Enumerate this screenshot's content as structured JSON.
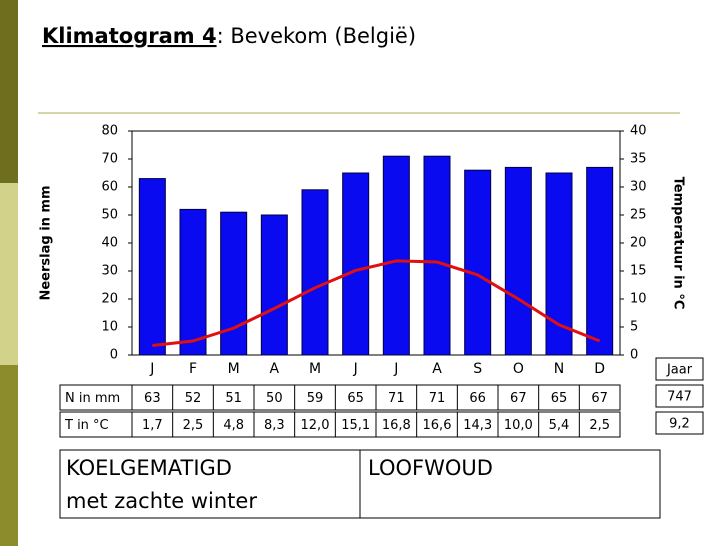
{
  "chart_data": {
    "type": "bar-line",
    "title_main": "Klimatogram 4",
    "title_rest": ": Bevekom (België)",
    "y_label": "Neerslag in mm",
    "y2_label": "Temperatuur in °C",
    "categories": [
      "J",
      "F",
      "M",
      "A",
      "M",
      "J",
      "J",
      "A",
      "S",
      "O",
      "N",
      "D"
    ],
    "series": [
      {
        "name": "N in mm",
        "type": "bar",
        "color": "#0a0af0",
        "values": [
          63,
          52,
          51,
          50,
          59,
          65,
          71,
          71,
          66,
          67,
          65,
          67
        ]
      },
      {
        "name": "T in °C",
        "type": "line",
        "axis": "y2",
        "color": "#e01010",
        "values": [
          1.7,
          2.5,
          4.8,
          8.3,
          12.0,
          15.1,
          16.8,
          16.6,
          14.3,
          10.0,
          5.4,
          2.5
        ],
        "value_labels": [
          "1,7",
          "2,5",
          "4,8",
          "8,3",
          "12,0",
          "15,1",
          "16,8",
          "16,6",
          "14,3",
          "10,0",
          "5,4",
          "2,5"
        ]
      }
    ],
    "ylim": [
      0,
      80
    ],
    "yticks": [
      0,
      10,
      20,
      30,
      40,
      50,
      60,
      70,
      80
    ],
    "y2lim": [
      0,
      40
    ],
    "y2ticks": [
      0,
      5,
      10,
      15,
      20,
      25,
      30,
      35,
      40
    ],
    "annual": {
      "label": "Jaar",
      "precipitation": 747,
      "temperature": "9,2"
    },
    "climate": {
      "zone": "KOELGEMATIGD",
      "subzone": "met zachte winter",
      "vegetation": "LOOFWOUD"
    }
  }
}
